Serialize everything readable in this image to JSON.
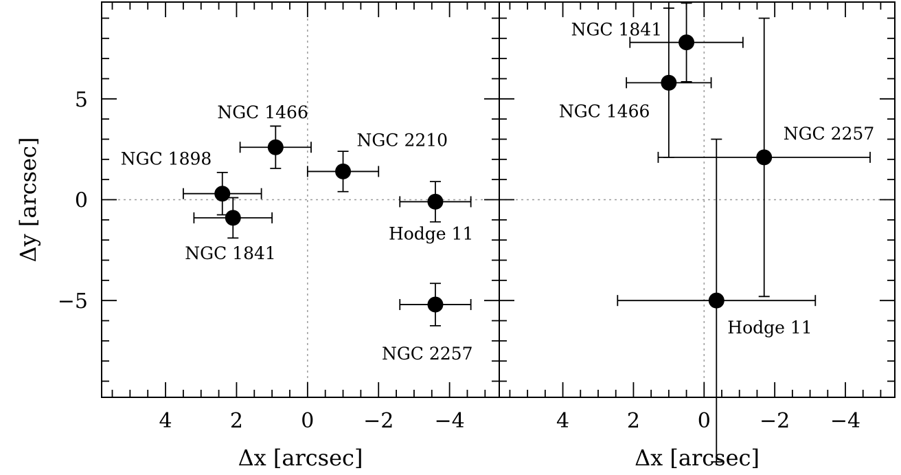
{
  "colors": {
    "ink": "#000000",
    "background": "#ffffff",
    "zero_line": "#9a9a9a"
  },
  "chart_data": [
    {
      "type": "scatter",
      "title": "",
      "xlabel": "Δx [arcsec]",
      "ylabel": "Δy [arcsec]",
      "xlim": [
        5.8,
        -5.4
      ],
      "ylim": [
        -9.8,
        9.8
      ],
      "x_reversed": true,
      "xticks": [
        4,
        2,
        0,
        -2,
        -4
      ],
      "xtick_labels": [
        "4",
        "2",
        "0",
        "−2",
        "−4"
      ],
      "yticks": [
        -5,
        0,
        5
      ],
      "ytick_labels": [
        "−5",
        "0",
        "5"
      ],
      "zero_lines": true,
      "grid": false,
      "points": [
        {
          "label": "NGC 1466",
          "x": 0.9,
          "y": 2.6,
          "xerr": 1.0,
          "yerr": 1.05
        },
        {
          "label": "NGC 2210",
          "x": -1.0,
          "y": 1.4,
          "xerr": 1.0,
          "yerr": 1.0
        },
        {
          "label": "NGC 1898",
          "x": 2.4,
          "y": 0.3,
          "xerr": 1.1,
          "yerr": 1.05
        },
        {
          "label": "NGC 1841",
          "x": 2.1,
          "y": -0.9,
          "xerr": 1.1,
          "yerr": 1.0
        },
        {
          "label": "Hodge 11",
          "x": -3.6,
          "y": -0.1,
          "xerr": 1.0,
          "yerr": 1.0
        },
        {
          "label": "NGC 2257",
          "x": -3.6,
          "y": -5.2,
          "xerr": 1.0,
          "yerr": 1.05
        }
      ]
    },
    {
      "type": "scatter",
      "title": "",
      "xlabel": "Δx [arcsec]",
      "ylabel": "",
      "xlim": [
        5.8,
        -5.4
      ],
      "ylim": [
        -9.8,
        9.8
      ],
      "x_reversed": true,
      "xticks": [
        4,
        2,
        0,
        -2,
        -4
      ],
      "xtick_labels": [
        "4",
        "2",
        "0",
        "−2",
        "−4"
      ],
      "yticks": [
        -5,
        0,
        5
      ],
      "ytick_labels": [],
      "zero_lines": true,
      "grid": false,
      "points": [
        {
          "label": "NGC 1841",
          "x": 0.5,
          "y": 7.8,
          "xerr": 1.6,
          "yerr": 1.95
        },
        {
          "label": "NGC 1466",
          "x": 1.0,
          "y": 5.8,
          "xerr": 1.2,
          "yerr": 3.7
        },
        {
          "label": "NGC 2257",
          "x": -1.7,
          "y": 2.1,
          "xerr": 3.0,
          "yerr": 6.9
        },
        {
          "label": "Hodge 11",
          "x": -0.35,
          "y": -5.0,
          "xerr": 2.8,
          "yerr": 8.0
        }
      ]
    }
  ]
}
